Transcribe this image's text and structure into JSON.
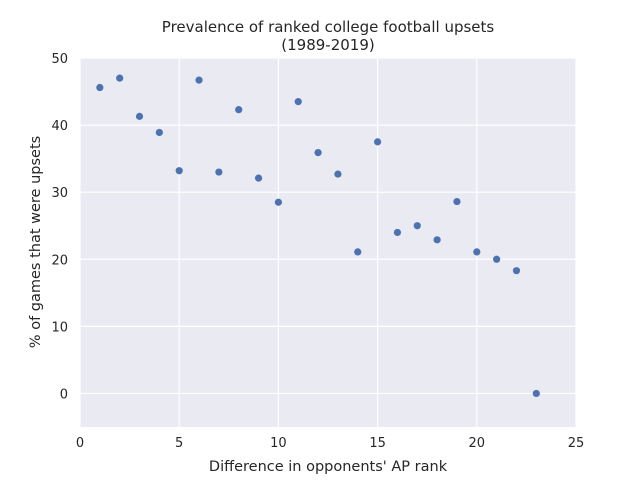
{
  "chart_data": {
    "type": "scatter",
    "title": "Prevalence of ranked college football upsets",
    "subtitle": "(1989-2019)",
    "xlabel": "Difference in opponents' AP rank",
    "ylabel": "% of games that were upsets",
    "xlim": [
      0,
      25
    ],
    "ylim": [
      -5,
      50
    ],
    "xticks": [
      0,
      5,
      10,
      15,
      20,
      25
    ],
    "yticks": [
      0,
      10,
      20,
      30,
      40,
      50
    ],
    "grid": true,
    "colors": {
      "background": "#eaeaf2",
      "grid": "#ffffff",
      "point": "#4c72b0"
    },
    "x": [
      1,
      2,
      3,
      4,
      5,
      6,
      7,
      8,
      9,
      10,
      11,
      12,
      13,
      14,
      15,
      16,
      17,
      18,
      19,
      20,
      21,
      22,
      23
    ],
    "y": [
      45.6,
      47.0,
      41.3,
      38.9,
      33.2,
      46.7,
      33.0,
      42.3,
      32.1,
      28.5,
      43.5,
      35.9,
      32.7,
      21.1,
      37.5,
      24.0,
      25.0,
      22.9,
      28.6,
      21.1,
      20.0,
      18.3,
      0.0
    ]
  }
}
